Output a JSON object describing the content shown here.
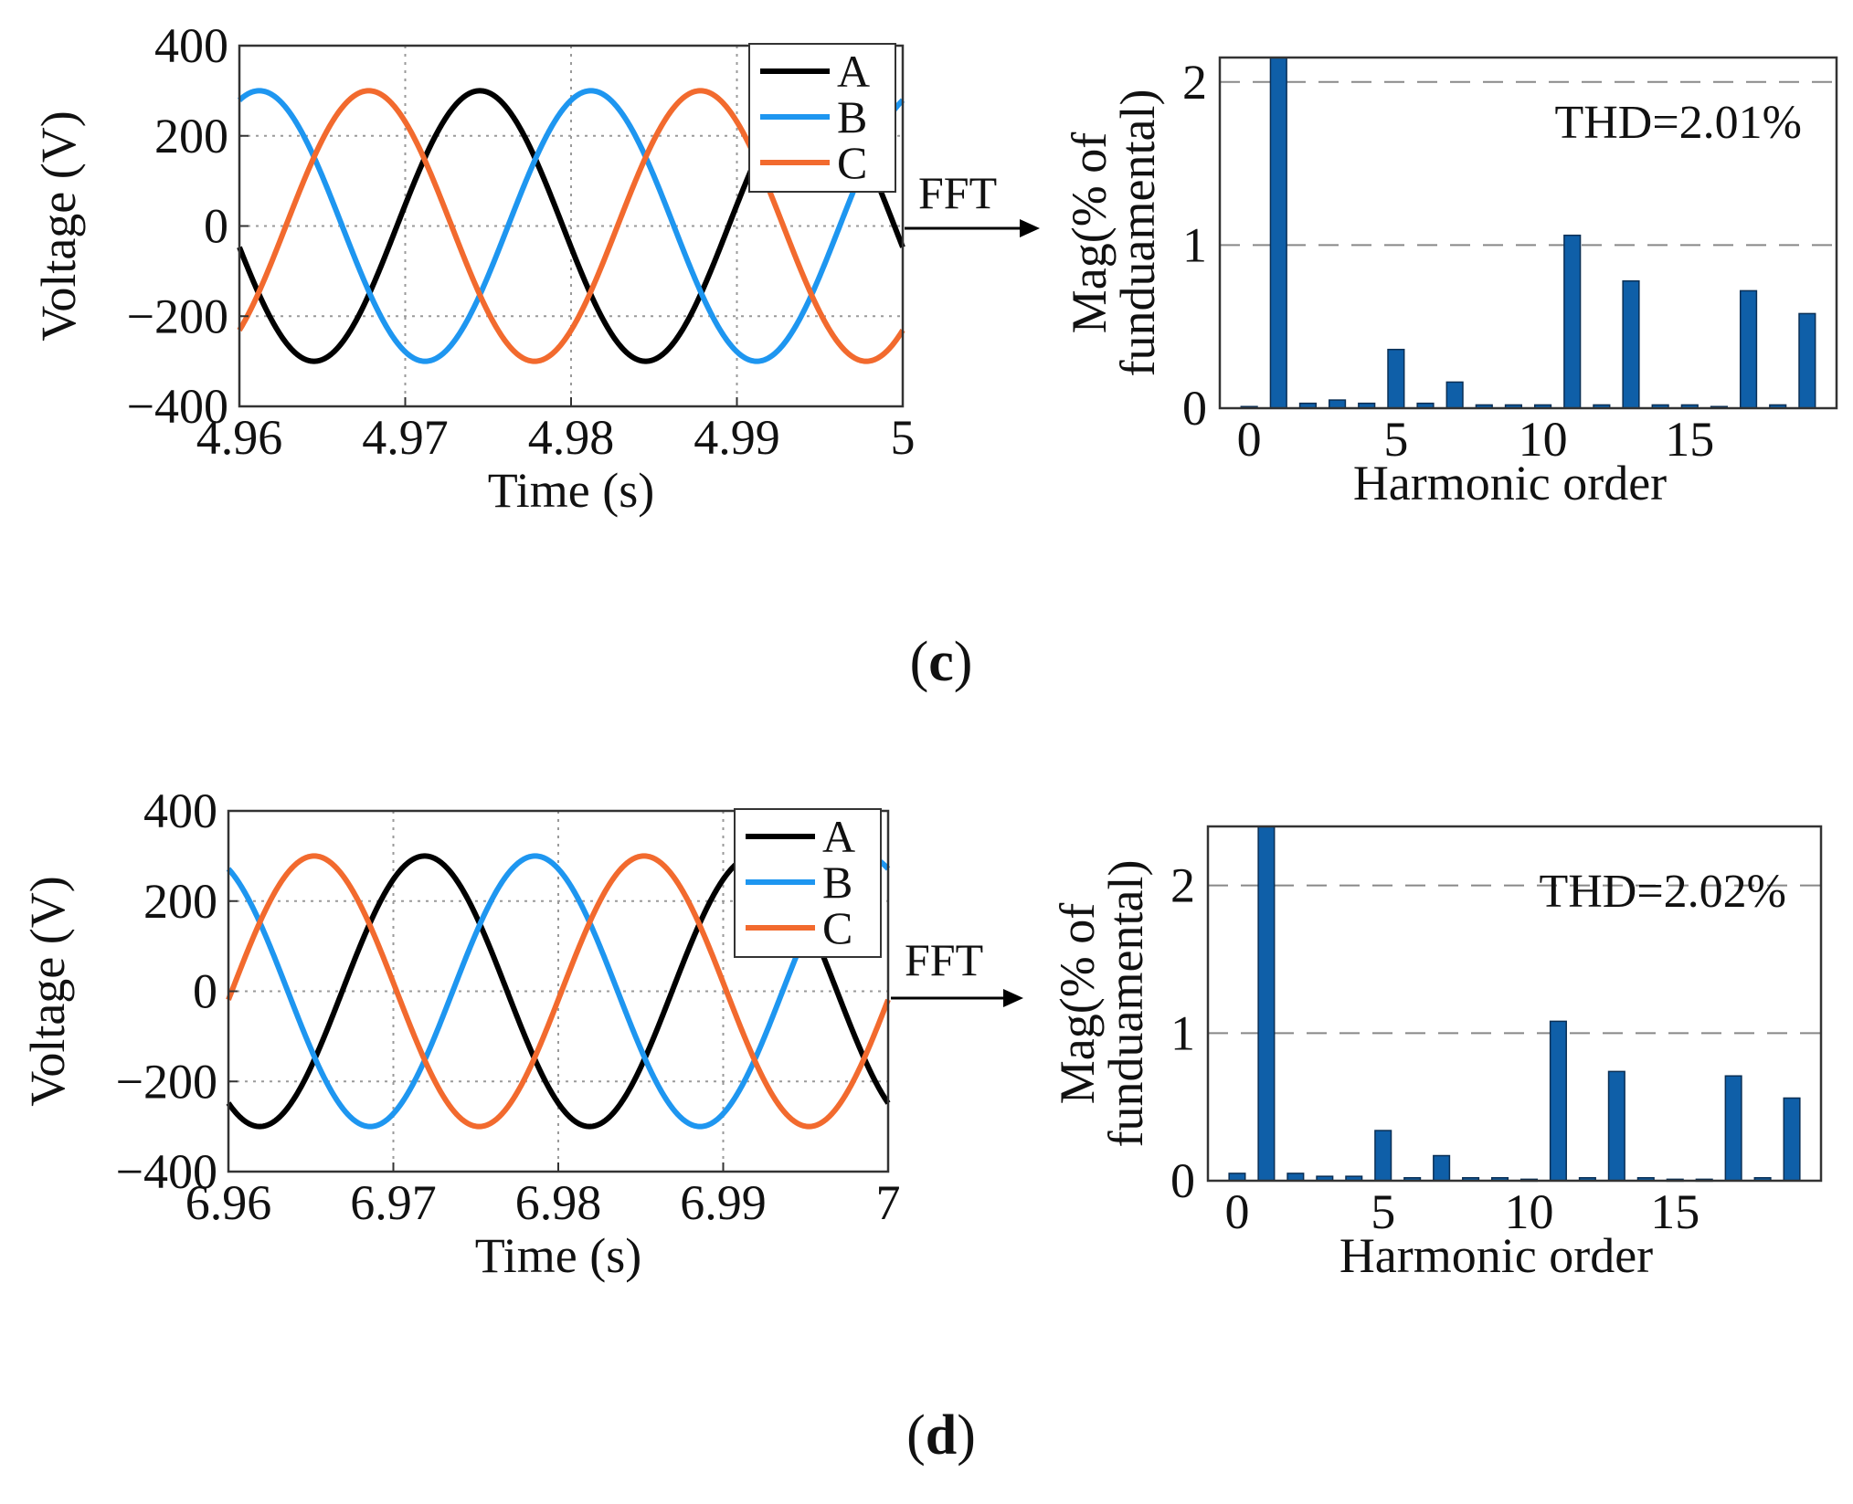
{
  "figure": {
    "arrow_label": "FFT",
    "panel_c_label": "c",
    "panel_d_label": "d"
  },
  "chart_data": [
    {
      "id": "c-time",
      "type": "line",
      "panel": "c",
      "title": "",
      "xlabel": "Time (s)",
      "ylabel": "Voltage (V)",
      "xlim": [
        4.96,
        5.0
      ],
      "ylim": [
        -400,
        400
      ],
      "xticks": [
        4.96,
        4.97,
        4.98,
        4.99,
        5.0
      ],
      "xtick_labels": [
        "4.96",
        "4.97",
        "4.98",
        "4.99",
        "5"
      ],
      "yticks": [
        400,
        200,
        0,
        -200,
        -400
      ],
      "ytick_labels": [
        "400",
        "200",
        "0",
        "−200",
        "−400"
      ],
      "grid": true,
      "legend_position": "top-right",
      "amplitude": 300,
      "frequency_hz": 50,
      "series": [
        {
          "name": "A",
          "color": "#000000",
          "peak_time": 4.9745
        },
        {
          "name": "B",
          "color": "#1e96f0",
          "peak_time": 4.9612
        },
        {
          "name": "C",
          "color": "#f26a2e",
          "peak_time": 4.9678
        }
      ]
    },
    {
      "id": "c-fft",
      "type": "bar",
      "panel": "c",
      "xlabel": "Harmonic order",
      "ylabel_line1": "Mag(% of",
      "ylabel_line2": "funduamental)",
      "annotation": "THD=2.01%",
      "xlim": [
        -1,
        20
      ],
      "ylim": [
        0,
        2.15
      ],
      "xticks": [
        0,
        5,
        10,
        15
      ],
      "xtick_labels": [
        "0",
        "5",
        "10",
        "15"
      ],
      "yticks": [
        0,
        1,
        2
      ],
      "ytick_labels": [
        "0",
        "1",
        "2"
      ],
      "grid": "horizontal-dashed",
      "bar_color": "#0f5fa8",
      "categories": [
        0,
        1,
        2,
        3,
        4,
        5,
        6,
        7,
        8,
        9,
        10,
        11,
        12,
        13,
        14,
        15,
        16,
        17,
        18,
        19
      ],
      "values": [
        0.01,
        2.15,
        0.03,
        0.05,
        0.03,
        0.36,
        0.03,
        0.16,
        0.02,
        0.02,
        0.02,
        1.06,
        0.02,
        0.78,
        0.02,
        0.02,
        0.01,
        0.72,
        0.02,
        0.58
      ]
    },
    {
      "id": "d-time",
      "type": "line",
      "panel": "d",
      "title": "",
      "xlabel": "Time (s)",
      "ylabel": "Voltage (V)",
      "xlim": [
        6.96,
        7.0
      ],
      "ylim": [
        -400,
        400
      ],
      "xticks": [
        6.96,
        6.97,
        6.98,
        6.99,
        7.0
      ],
      "xtick_labels": [
        "6.96",
        "6.97",
        "6.98",
        "6.99",
        "7"
      ],
      "yticks": [
        400,
        200,
        0,
        -200,
        -400
      ],
      "ytick_labels": [
        "400",
        "200",
        "0",
        "−200",
        "−400"
      ],
      "grid": true,
      "legend_position": "top-right",
      "amplitude": 300,
      "frequency_hz": 50,
      "series": [
        {
          "name": "A",
          "color": "#000000",
          "peak_time": 6.9719
        },
        {
          "name": "B",
          "color": "#1e96f0",
          "peak_time": 6.9786
        },
        {
          "name": "C",
          "color": "#f26a2e",
          "peak_time": 6.9652
        }
      ]
    },
    {
      "id": "d-fft",
      "type": "bar",
      "panel": "d",
      "xlabel": "Harmonic order",
      "ylabel_line1": "Mag(% of",
      "ylabel_line2": "funduamental)",
      "annotation": "THD=2.02%",
      "xlim": [
        -1,
        20
      ],
      "ylim": [
        0,
        2.4
      ],
      "xticks": [
        0,
        5,
        10,
        15
      ],
      "xtick_labels": [
        "0",
        "5",
        "10",
        "15"
      ],
      "yticks": [
        0,
        1,
        2
      ],
      "ytick_labels": [
        "0",
        "1",
        "2"
      ],
      "grid": "horizontal-dashed",
      "bar_color": "#0f5fa8",
      "categories": [
        0,
        1,
        2,
        3,
        4,
        5,
        6,
        7,
        8,
        9,
        10,
        11,
        12,
        13,
        14,
        15,
        16,
        17,
        18,
        19
      ],
      "values": [
        0.05,
        2.4,
        0.05,
        0.03,
        0.03,
        0.34,
        0.02,
        0.17,
        0.02,
        0.02,
        0.01,
        1.08,
        0.02,
        0.74,
        0.02,
        0.01,
        0.01,
        0.71,
        0.02,
        0.56
      ]
    }
  ]
}
